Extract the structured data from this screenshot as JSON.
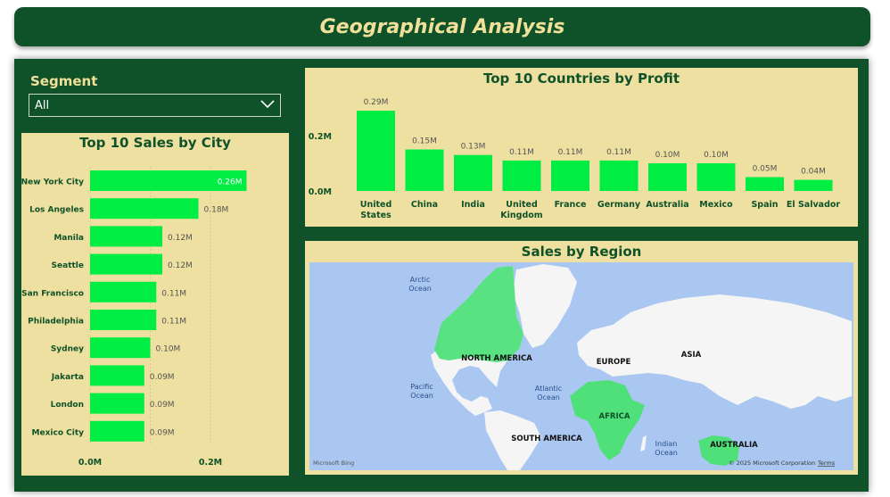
{
  "header": {
    "title": "Geographical Analysis"
  },
  "segment": {
    "label": "Segment",
    "selected": "All"
  },
  "city_chart": {
    "title": "Top 10 Sales by City",
    "x_ticks": [
      "0.0M",
      "0.2M"
    ]
  },
  "country_chart": {
    "title": "Top 10 Countries by Profit",
    "y_ticks": [
      "0.2M",
      "0.0M"
    ]
  },
  "map": {
    "title": "Sales by Region",
    "labels": {
      "arctic": "Arctic\nOcean",
      "pacific": "Pacific\nOcean",
      "atlantic": "Atlantic\nOcean",
      "indian": "Indian\nOcean",
      "north_america": "NORTH AMERICA",
      "europe": "EUROPE",
      "asia": "ASIA",
      "africa": "AFRICA",
      "south_america": "SOUTH AMERICA",
      "australia": "AUSTRALIA"
    },
    "attribution": "© 2025 Microsoft Corporation",
    "terms": "Terms",
    "logo": "Microsoft Bing",
    "highlight_color": "#4fe07a"
  },
  "colors": {
    "bar": "#00ee44",
    "panel": "#0f5128",
    "card": "#ede0a0",
    "accent_text": "#f0e09a"
  },
  "chart_data": [
    {
      "type": "bar",
      "orientation": "horizontal",
      "title": "Top 10 Sales by City",
      "categories": [
        "New York City",
        "Los Angeles",
        "Manila",
        "Seattle",
        "San Francisco",
        "Philadelphia",
        "Sydney",
        "Jakarta",
        "London",
        "Mexico City"
      ],
      "values": [
        0.26,
        0.18,
        0.12,
        0.12,
        0.11,
        0.11,
        0.1,
        0.09,
        0.09,
        0.09
      ],
      "value_labels": [
        "0.26M",
        "0.18M",
        "0.12M",
        "0.12M",
        "0.11M",
        "0.11M",
        "0.10M",
        "0.09M",
        "0.09M",
        "0.09M"
      ],
      "xlim": [
        0,
        0.3
      ],
      "grid": true
    },
    {
      "type": "bar",
      "title": "Top 10 Countries by Profit",
      "categories": [
        "United States",
        "China",
        "India",
        "United Kingdom",
        "France",
        "Germany",
        "Australia",
        "Mexico",
        "Spain",
        "El Salvador"
      ],
      "values": [
        0.29,
        0.15,
        0.13,
        0.11,
        0.11,
        0.11,
        0.1,
        0.1,
        0.05,
        0.04
      ],
      "value_labels": [
        "0.29M",
        "0.15M",
        "0.13M",
        "0.11M",
        "0.11M",
        "0.11M",
        "0.10M",
        "0.10M",
        "0.05M",
        "0.04M"
      ],
      "ylim": [
        0,
        0.3
      ],
      "grid": false
    }
  ]
}
